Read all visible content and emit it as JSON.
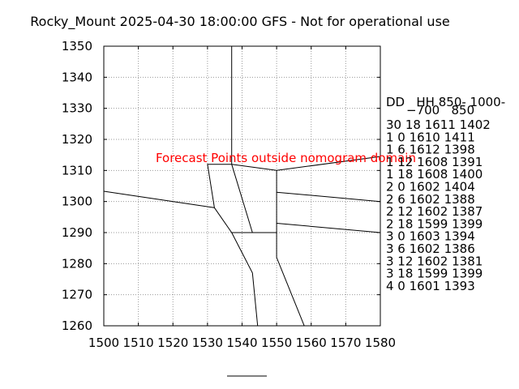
{
  "chart_data": {
    "type": "line",
    "title": "Rocky_Mount 2025-04-30 18:00:00 GFS - Not for operational use",
    "xlim": [
      1500,
      1580
    ],
    "ylim": [
      1260,
      1350
    ],
    "xticks": [
      1500,
      1510,
      1520,
      1530,
      1540,
      1550,
      1560,
      1570,
      1580
    ],
    "yticks": [
      1260,
      1270,
      1280,
      1290,
      1300,
      1310,
      1320,
      1330,
      1340,
      1350
    ],
    "grid": true,
    "xlabel": "",
    "ylabel": "",
    "series": [
      {
        "values": [
          [
            1537,
            1350
          ],
          [
            1537,
            1312
          ]
        ]
      },
      {
        "values": [
          [
            1500,
            1303.3
          ],
          [
            1532,
            1298
          ],
          [
            1530,
            1312
          ],
          [
            1537,
            1312
          ],
          [
            1550,
            1310
          ],
          [
            1580,
            1314.5
          ]
        ]
      },
      {
        "values": [
          [
            1537,
            1312
          ],
          [
            1543,
            1290
          ],
          [
            1550,
            1290
          ],
          [
            1550,
            1310
          ]
        ]
      },
      {
        "values": [
          [
            1532,
            1298
          ],
          [
            1537,
            1290
          ],
          [
            1550,
            1290
          ]
        ]
      },
      {
        "values": [
          [
            1550,
            1303
          ],
          [
            1580,
            1300
          ]
        ]
      },
      {
        "values": [
          [
            1550,
            1293
          ],
          [
            1580,
            1290
          ]
        ]
      },
      {
        "values": [
          [
            1537,
            1290
          ],
          [
            1543,
            1277
          ],
          [
            1544.5,
            1260
          ]
        ]
      },
      {
        "values": [
          [
            1550,
            1290
          ],
          [
            1550,
            1282
          ],
          [
            1558,
            1260
          ]
        ]
      }
    ],
    "annotation": "Forecast Points outside nomogram domain",
    "annotation_color": "#ff0000",
    "annotation_at": [
      1515,
      1314
    ],
    "table": {
      "header_line1": "DD   HH 850- 1000-",
      "header_line2": "−700   850",
      "rows": [
        "30 18 1611 1402",
        "1  0 1610 1411",
        "1  6 1612 1398",
        "1 12 1608 1391",
        "1 18 1608 1400",
        "2  0 1602 1404",
        "2  6 1602 1388",
        "2 12 1602 1387",
        "2 18 1599 1399",
        "3  0 1603 1394",
        "3  6 1602 1386",
        "3 12 1602 1381",
        "3 18 1599 1399",
        "4  0 1601 1393"
      ]
    }
  }
}
